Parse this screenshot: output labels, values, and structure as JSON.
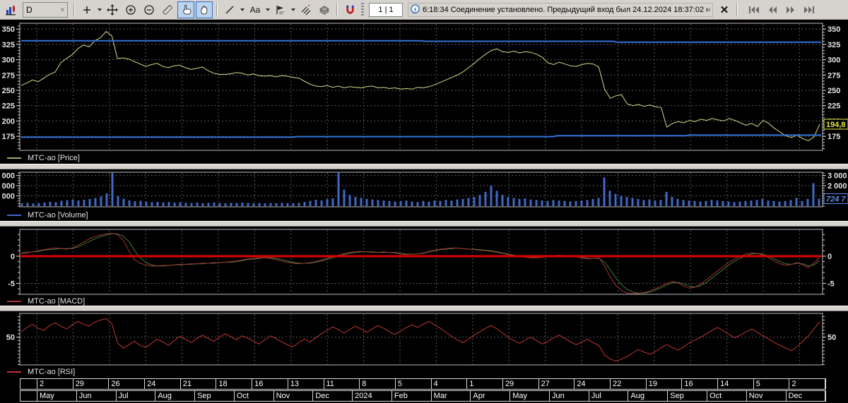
{
  "toolbar": {
    "interval_value": "D",
    "text_tool_label": "Aa",
    "page_indicator": "1 | 1",
    "status_message": "6:18:34 Соединение установлено. Предыдущий вход был 24.12.2024 18:37:02 с",
    "close_label": "✕"
  },
  "date_axis": {
    "days": [
      "2",
      "29",
      "26",
      "24",
      "21",
      "18",
      "16",
      "13",
      "11",
      "8",
      "5",
      "4",
      "1",
      "29",
      "27",
      "24",
      "22",
      "19",
      "16",
      "14",
      "5",
      "2"
    ],
    "months": [
      "May",
      "Jun",
      "Jul",
      "Aug",
      "Sep",
      "Oct",
      "Nov",
      "Dec",
      "2024",
      "Feb",
      "Mar",
      "Apr",
      "May",
      "Jun",
      "Jul",
      "Aug",
      "Sep",
      "Oct",
      "Nov",
      "Dec"
    ]
  },
  "colors": {
    "price_line": "#d9d98a",
    "level_blue": "#3272d9",
    "volume_bar": "#4169c8",
    "macd_red": "#aa3333",
    "macd_green": "#3d7d3d",
    "zero_red": "#dd0000",
    "rsi_red": "#c03434",
    "grid": "#5a5a5a",
    "frame": "#bdbdbd",
    "axis_text": "#e6e6e6",
    "price_tag": "#e8e840",
    "volume_tag": "#5b8ff0"
  },
  "chart_data": [
    {
      "id": "price",
      "type": "line",
      "legend": "МТС-ао [Price]",
      "legend_color": "#a8a860",
      "ylim": [
        152,
        359.4
      ],
      "grid_on": true,
      "plot": {
        "y": 4,
        "h": 180
      },
      "map": {
        "base": 316.08,
        "k": 0.8683
      },
      "yticks": [
        175,
        200,
        225,
        250,
        275,
        300,
        325,
        350
      ],
      "left_labels": [
        {
          "v": 175,
          "t": "175"
        },
        {
          "v": 200,
          "t": "200"
        },
        {
          "v": 225,
          "t": "225"
        },
        {
          "v": 250,
          "t": "250"
        },
        {
          "v": 275,
          "t": "275"
        },
        {
          "v": 300,
          "t": "300"
        },
        {
          "v": 325,
          "t": "325"
        },
        {
          "v": 350,
          "t": "350"
        }
      ],
      "right_labels": [
        {
          "v": 175,
          "t": "175"
        },
        {
          "v": 200,
          "t": "200"
        },
        {
          "v": 225,
          "t": "225"
        },
        {
          "v": 250,
          "t": "250"
        },
        {
          "v": 275,
          "t": "275"
        },
        {
          "v": 300,
          "t": "300"
        },
        {
          "v": 325,
          "t": "325"
        },
        {
          "v": 350,
          "t": "350"
        }
      ],
      "minor_step": 5,
      "last_value": 194.8,
      "tag": {
        "text": "194,8",
        "v": 194.8
      },
      "levels": [
        {
          "name": "upper-level-line",
          "points": [
            [
              0,
              331
            ],
            [
              0.5,
              331
            ],
            [
              0.505,
              330
            ],
            [
              0.74,
              330
            ],
            [
              0.745,
              328.5
            ],
            [
              1,
              328.5
            ]
          ]
        },
        {
          "name": "lower-level-line",
          "points": [
            [
              0,
              173.5
            ],
            [
              0.34,
              173.5
            ],
            [
              0.345,
              174.5
            ],
            [
              0.665,
              174.5
            ],
            [
              0.67,
              176
            ],
            [
              0.83,
              176
            ],
            [
              0.835,
              177
            ],
            [
              1,
              177
            ]
          ]
        }
      ],
      "series": [
        {
          "name": "МТС-ао [Price]",
          "color": "#d9d98a",
          "width": 1,
          "values": [
            258,
            262,
            267,
            264,
            270,
            276,
            280,
            295,
            302,
            308,
            318,
            324,
            321,
            331,
            336,
            346,
            339,
            302,
            303,
            301,
            297,
            293,
            289,
            292,
            294,
            289,
            287,
            290,
            291,
            287,
            284,
            286,
            288,
            282,
            278,
            276,
            276,
            277,
            279,
            278,
            275,
            277,
            274,
            273,
            274,
            272,
            274,
            273,
            271,
            270,
            265,
            260,
            257,
            256,
            258,
            255,
            257,
            254,
            256,
            255,
            254,
            256,
            257,
            254,
            255,
            253,
            254,
            252,
            253,
            252,
            255,
            254,
            256,
            259,
            263,
            267,
            271,
            275,
            280,
            287,
            294,
            302,
            309,
            315,
            318,
            313,
            312,
            314,
            311,
            313,
            312,
            309,
            304,
            295,
            292,
            296,
            293,
            290,
            289,
            292,
            294,
            293,
            288,
            252,
            237,
            241,
            243,
            228,
            225,
            227,
            224,
            226,
            223,
            222,
            190,
            196,
            199,
            197,
            201,
            199,
            203,
            201,
            204,
            202,
            200,
            204,
            201,
            197,
            193,
            196,
            191,
            201,
            196,
            188,
            182,
            176,
            173,
            177,
            171,
            168,
            174,
            195
          ]
        }
      ]
    },
    {
      "id": "volume",
      "type": "bar",
      "legend": "МТС-ао [Volume]",
      "legend_color": "#4169c8",
      "ylim": [
        0,
        3325
      ],
      "grid_on": true,
      "plot": {
        "y": 4,
        "h": 49
      },
      "map": {
        "base": 52,
        "k": 0.01444
      },
      "yticks": [
        1000,
        2000,
        3000
      ],
      "left_labels": [
        {
          "v": 1000,
          "t": "000"
        },
        {
          "v": 2000,
          "t": "000"
        },
        {
          "v": 3000,
          "t": "000"
        }
      ],
      "right_labels": [
        {
          "v": 3000,
          "t": "3 000"
        },
        {
          "v": 2000,
          "t": "2 000"
        }
      ],
      "minor_step": 250,
      "last_value": 724.7,
      "tag": {
        "text": "724 7",
        "v": 724.7
      },
      "values_thousands": [
        280,
        320,
        260,
        300,
        350,
        420,
        380,
        520,
        580,
        640,
        560,
        620,
        700,
        800,
        950,
        1250,
        3250,
        980,
        720,
        560,
        480,
        520,
        440,
        380,
        420,
        360,
        400,
        340,
        380,
        320,
        300,
        340,
        280,
        320,
        360,
        300,
        280,
        320,
        300,
        340,
        320,
        280,
        300,
        260,
        300,
        280,
        320,
        300,
        280,
        320,
        420,
        520,
        620,
        560,
        680,
        760,
        3300,
        1600,
        1100,
        900,
        800,
        700,
        650,
        600,
        550,
        500,
        450,
        500,
        550,
        450,
        400,
        500,
        450,
        550,
        500,
        600,
        550,
        650,
        700,
        800,
        900,
        1100,
        1400,
        2000,
        1500,
        1100,
        900,
        800,
        700,
        750,
        650,
        600,
        550,
        500,
        600,
        550,
        500,
        450,
        500,
        550,
        600,
        700,
        800,
        2800,
        1500,
        1200,
        1000,
        900,
        800,
        700,
        600,
        650,
        550,
        600,
        1400,
        900,
        700,
        600,
        550,
        500,
        450,
        500,
        600,
        550,
        500,
        450,
        400,
        450,
        500,
        550,
        600,
        700,
        550,
        500,
        450,
        500,
        600,
        800,
        500,
        700,
        2250,
        724
      ]
    },
    {
      "id": "macd",
      "type": "line",
      "legend": "МТС-ао [MACD]",
      "legend_color": "#aa3333",
      "ylim": [
        -7.1,
        4.9
      ],
      "grid_on": true,
      "plot": {
        "y": 4,
        "h": 92
      },
      "map": {
        "base": 42,
        "k": 7.7
      },
      "yticks": [
        -5
      ],
      "zero_line": {
        "v": 0,
        "width": 3
      },
      "left_labels": [
        {
          "v": 0,
          "t": "0"
        },
        {
          "v": -5,
          "t": "-5"
        }
      ],
      "right_labels": [
        {
          "v": 0,
          "t": "0"
        },
        {
          "v": -5,
          "t": "-5"
        }
      ],
      "minor_step": 1,
      "series": [
        {
          "name": "macd-signal-line",
          "color": "#3d7d3d",
          "width": 1,
          "values": [
            0.6,
            0.7,
            0.8,
            0.9,
            1.1,
            1.2,
            1.3,
            1.4,
            1.4,
            1.4,
            1.7,
            2.2,
            2.7,
            3.2,
            3.6,
            3.9,
            4.1,
            4.1,
            3.7,
            2.7,
            1.1,
            -0.3,
            -1.1,
            -1.6,
            -1.8,
            -1.8,
            -1.7,
            -1.6,
            -1.6,
            -1.5,
            -1.5,
            -1.4,
            -1.4,
            -1.3,
            -1.3,
            -1.2,
            -1.1,
            -1.1,
            -1.0,
            -0.8,
            -0.6,
            -0.5,
            -0.4,
            -0.3,
            -0.3,
            -0.4,
            -0.6,
            -0.9,
            -1.1,
            -1.3,
            -1.3,
            -1.3,
            -1.1,
            -0.9,
            -0.6,
            -0.3,
            0.0,
            0.3,
            0.5,
            0.7,
            0.8,
            0.8,
            0.8,
            0.7,
            0.7,
            0.7,
            0.7,
            0.5,
            0.4,
            0.4,
            0.4,
            0.5,
            0.8,
            1.0,
            1.2,
            1.3,
            1.4,
            1.5,
            1.4,
            1.3,
            1.3,
            1.2,
            1.1,
            1.0,
            0.8,
            0.6,
            0.4,
            0.2,
            0.0,
            -0.1,
            -0.2,
            -0.3,
            -0.2,
            -0.1,
            0.0,
            0.1,
            0.1,
            0.0,
            -0.1,
            -0.2,
            -0.4,
            -0.4,
            -0.4,
            -1.1,
            -2.5,
            -4.0,
            -5.3,
            -6.1,
            -6.6,
            -6.8,
            -6.8,
            -6.6,
            -6.2,
            -5.8,
            -5.3,
            -4.9,
            -4.8,
            -5.1,
            -5.5,
            -5.7,
            -5.4,
            -4.8,
            -4.0,
            -3.2,
            -2.4,
            -1.6,
            -0.9,
            -0.4,
            0.1,
            0.4,
            0.5,
            0.4,
            0.0,
            -0.5,
            -1.0,
            -1.4,
            -1.5,
            -1.3,
            -1.4,
            -1.8,
            -1.6,
            -0.8
          ]
        },
        {
          "name": "МТС-ао [MACD]",
          "color": "#aa3333",
          "width": 1,
          "values": [
            0.5,
            0.6,
            0.8,
            1.0,
            1.2,
            1.4,
            1.5,
            1.4,
            1.3,
            1.5,
            2.0,
            2.6,
            3.2,
            3.6,
            3.9,
            4.1,
            4.2,
            4.0,
            3.0,
            1.0,
            -0.6,
            -1.3,
            -1.6,
            -1.8,
            -1.8,
            -1.7,
            -1.7,
            -1.6,
            -1.5,
            -1.5,
            -1.4,
            -1.4,
            -1.3,
            -1.3,
            -1.2,
            -1.2,
            -1.1,
            -1.0,
            -0.9,
            -0.7,
            -0.5,
            -0.4,
            -0.3,
            -0.3,
            -0.4,
            -0.6,
            -0.9,
            -1.1,
            -1.3,
            -1.4,
            -1.3,
            -1.2,
            -1.0,
            -0.7,
            -0.4,
            -0.1,
            0.2,
            0.5,
            0.7,
            0.8,
            0.9,
            0.8,
            0.7,
            0.7,
            0.8,
            0.7,
            0.6,
            0.4,
            0.3,
            0.4,
            0.4,
            0.6,
            0.9,
            1.1,
            1.3,
            1.4,
            1.5,
            1.5,
            1.4,
            1.3,
            1.2,
            1.1,
            1.0,
            0.9,
            0.7,
            0.5,
            0.3,
            0.1,
            -0.1,
            -0.2,
            -0.3,
            -0.3,
            -0.2,
            0.0,
            0.1,
            0.2,
            0.1,
            0.0,
            -0.1,
            -0.3,
            -0.5,
            -0.4,
            -0.3,
            -1.8,
            -3.8,
            -5.4,
            -6.3,
            -6.8,
            -7.0,
            -6.9,
            -6.7,
            -6.4,
            -6.0,
            -5.5,
            -5.0,
            -4.7,
            -4.9,
            -5.5,
            -5.9,
            -5.7,
            -5.1,
            -4.3,
            -3.5,
            -2.7,
            -1.9,
            -1.1,
            -0.5,
            0.0,
            0.4,
            0.6,
            0.5,
            0.2,
            -0.3,
            -0.9,
            -1.4,
            -1.7,
            -1.5,
            -1.2,
            -1.6,
            -2.1,
            -1.2,
            -0.3
          ]
        }
      ]
    },
    {
      "id": "rsi",
      "type": "line",
      "legend": "МТС-ао [RSI]",
      "legend_color": "#bb3333",
      "ylim": [
        10,
        84
      ],
      "grid_on": true,
      "plot": {
        "y": 3,
        "h": 73
      },
      "map": {
        "base": 85.2,
        "k": 0.97
      },
      "yticks": [
        50
      ],
      "left_labels": [
        {
          "v": 50,
          "t": "50"
        }
      ],
      "right_labels": [
        {
          "v": 50,
          "t": "50"
        }
      ],
      "minor_step": 5,
      "series": [
        {
          "name": "МТС-ао [RSI]",
          "color": "#c03434",
          "width": 1,
          "values": [
            58,
            64,
            69,
            63,
            60,
            67,
            71,
            66,
            62,
            68,
            73,
            69,
            66,
            72,
            75,
            77,
            70,
            42,
            34,
            39,
            44,
            38,
            35,
            41,
            47,
            43,
            38,
            45,
            51,
            47,
            42,
            48,
            53,
            48,
            44,
            50,
            55,
            51,
            46,
            52,
            49,
            44,
            40,
            46,
            52,
            48,
            43,
            39,
            36,
            42,
            47,
            43,
            49,
            55,
            60,
            65,
            61,
            56,
            61,
            66,
            62,
            57,
            62,
            67,
            63,
            58,
            54,
            59,
            64,
            68,
            64,
            69,
            73,
            68,
            63,
            57,
            51,
            46,
            42,
            47,
            53,
            58,
            63,
            67,
            62,
            56,
            50,
            45,
            41,
            46,
            50,
            45,
            40,
            44,
            49,
            53,
            48,
            43,
            39,
            43,
            47,
            42,
            38,
            24,
            18,
            15,
            18,
            22,
            27,
            32,
            28,
            25,
            29,
            35,
            39,
            35,
            31,
            36,
            42,
            46,
            50,
            55,
            60,
            64,
            59,
            54,
            49,
            53,
            58,
            62,
            57,
            52,
            47,
            42,
            38,
            34,
            30,
            36,
            44,
            52,
            62,
            73
          ]
        }
      ]
    }
  ]
}
